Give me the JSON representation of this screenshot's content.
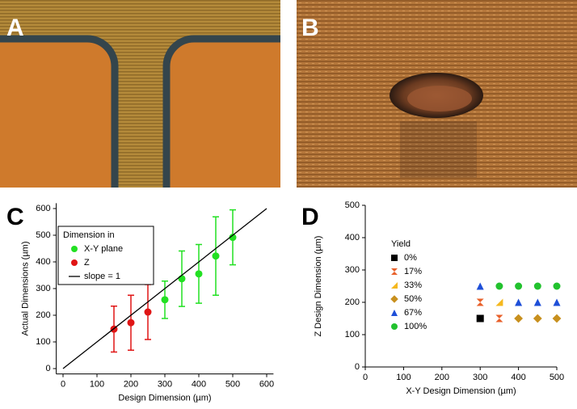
{
  "images": [
    {
      "label": "A"
    },
    {
      "label": "B"
    }
  ],
  "chart_data": [
    {
      "type": "scatter",
      "panel_label": "C",
      "xlabel": "Design Dimension (µm)",
      "ylabel": "Actual Dimensions (µm)",
      "xlim": [
        -20,
        620
      ],
      "ylim": [
        -20,
        620
      ],
      "xticks": [
        0,
        100,
        200,
        300,
        400,
        500,
        600
      ],
      "yticks": [
        0,
        100,
        200,
        300,
        400,
        500,
        600
      ],
      "legend": "upper left",
      "legend_title": "Dimension in",
      "legend_frame": true,
      "series": [
        {
          "name": "X-Y plane",
          "color": "#22e022",
          "marker": "circle",
          "x": [
            300,
            350,
            400,
            450,
            500
          ],
          "values": [
            258,
            337,
            355,
            422,
            492
          ],
          "errors": [
            70,
            104,
            110,
            147,
            103
          ]
        },
        {
          "name": "Z",
          "color": "#e01515",
          "marker": "circle",
          "x": [
            150,
            200,
            250
          ],
          "values": [
            148,
            172,
            212
          ],
          "errors": [
            86,
            103,
            103
          ]
        },
        {
          "name": "slope = 1",
          "color": "#000000",
          "marker": "line",
          "x": [
            0,
            600
          ],
          "values": [
            0,
            600
          ]
        }
      ]
    },
    {
      "type": "scatter",
      "panel_label": "D",
      "xlabel": "X-Y Design Dimension (µm)",
      "ylabel": "Z Design Dimension (µm)",
      "xlim": [
        0,
        500
      ],
      "ylim": [
        0,
        500
      ],
      "xticks": [
        0,
        100,
        200,
        300,
        400,
        500
      ],
      "yticks": [
        0,
        100,
        200,
        300,
        400,
        500
      ],
      "legend": "center left",
      "legend_title": "Yield",
      "legend_frame": false,
      "series": [
        {
          "name": "0%",
          "color": "#000000",
          "marker": "square",
          "x": [
            300
          ],
          "values": [
            150
          ]
        },
        {
          "name": "17%",
          "color": "#e8602a",
          "marker": "hourglass",
          "x": [
            300,
            350
          ],
          "values": [
            200,
            150
          ]
        },
        {
          "name": "33%",
          "color": "#f5b81e",
          "marker": "right-triangle",
          "x": [
            350
          ],
          "values": [
            200
          ]
        },
        {
          "name": "50%",
          "color": "#c8901e",
          "marker": "diamond",
          "x": [
            400,
            450,
            500
          ],
          "values": [
            150,
            150,
            150
          ]
        },
        {
          "name": "67%",
          "color": "#1e4fd8",
          "marker": "triangle",
          "x": [
            300,
            400,
            450,
            500
          ],
          "values": [
            250,
            200,
            200,
            200
          ]
        },
        {
          "name": "100%",
          "color": "#22c22e",
          "marker": "circle",
          "x": [
            350,
            400,
            450,
            500
          ],
          "values": [
            250,
            250,
            250,
            250
          ]
        }
      ]
    }
  ]
}
